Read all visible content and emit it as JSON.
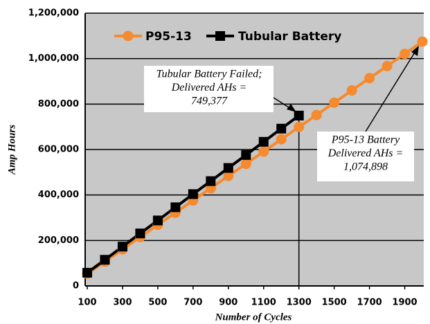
{
  "chart_data": {
    "type": "line",
    "xlabel": "Number of Cycles",
    "ylabel": "Amp Hours",
    "x": [
      100,
      200,
      300,
      400,
      500,
      600,
      700,
      800,
      900,
      1000,
      1100,
      1200,
      1300,
      1400,
      1500,
      1600,
      1700,
      1800,
      1900,
      2000
    ],
    "series": [
      {
        "name": "P95-13",
        "color": "#f58a2e",
        "marker": "circle",
        "values": [
          54000,
          107000,
          161000,
          215000,
          269000,
          322000,
          376000,
          430000,
          484000,
          537000,
          591000,
          645000,
          699000,
          752000,
          806000,
          860000,
          914000,
          967000,
          1021000,
          1074898
        ]
      },
      {
        "name": "Tubular Battery",
        "color": "#000000",
        "marker": "square",
        "values": [
          58000,
          115000,
          173000,
          231000,
          288000,
          346000,
          404000,
          461000,
          519000,
          576000,
          634000,
          692000,
          749377,
          null,
          null,
          null,
          null,
          null,
          null,
          null
        ]
      }
    ],
    "xlim": [
      100,
      2000
    ],
    "xticks": [
      100,
      300,
      500,
      700,
      900,
      1100,
      1300,
      1500,
      1700,
      1900
    ],
    "ylim": [
      0,
      1200000
    ],
    "yticks": [
      0,
      {
        "value": 200000,
        "label": "200,000"
      },
      {
        "value": 400000,
        "label": "400,000"
      },
      {
        "value": 600000,
        "label": "600,000"
      },
      {
        "value": 800000,
        "label": "800,000"
      },
      {
        "value": 1000000,
        "label": "1,000,000"
      },
      {
        "value": 1200000,
        "label": "1,200,000"
      }
    ],
    "grid": true,
    "legend": "top",
    "annotations": [
      {
        "lines": [
          "Tubular Battery Failed;",
          "Delivered AHs =",
          "749,377"
        ]
      },
      {
        "lines": [
          "P95-13 Battery",
          "Delivered AHs =",
          "1,074,898"
        ]
      }
    ]
  }
}
